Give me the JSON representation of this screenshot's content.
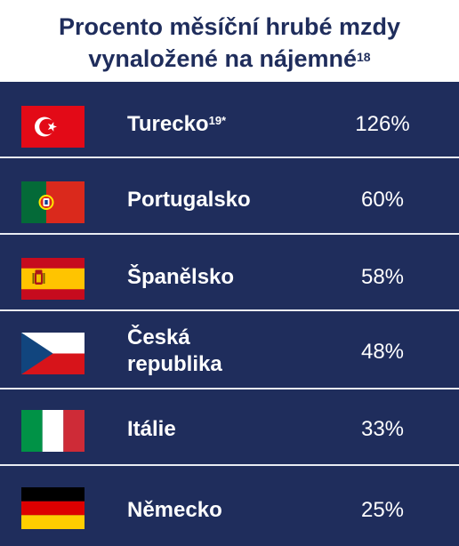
{
  "title": {
    "line1": "Procento měsíční hrubé mzdy",
    "line2": "vynaložené na nájemné",
    "footnote": "18"
  },
  "chart_data": {
    "type": "table",
    "title": "Procento měsíční hrubé mzdy vynaložené na nájemné",
    "unit": "%",
    "rows": [
      {
        "country": "Turecko",
        "footnote": "19*",
        "value": 126,
        "label": "126%",
        "flag": "turkey-flag-icon"
      },
      {
        "country": "Portugalsko",
        "footnote": "",
        "value": 60,
        "label": "60%",
        "flag": "portugal-flag-icon"
      },
      {
        "country": "Španělsko",
        "footnote": "",
        "value": 58,
        "label": "58%",
        "flag": "spain-flag-icon"
      },
      {
        "country": "Česká republika",
        "country_line1": "Česká",
        "country_line2": "republika",
        "footnote": "",
        "value": 48,
        "label": "48%",
        "flag": "czech-flag-icon"
      },
      {
        "country": "Itálie",
        "footnote": "",
        "value": 33,
        "label": "33%",
        "flag": "italy-flag-icon"
      },
      {
        "country": "Německo",
        "footnote": "",
        "value": 25,
        "label": "25%",
        "flag": "germany-flag-icon"
      }
    ]
  },
  "colors": {
    "table_background": "#1f2d5c",
    "title_text": "#1f2d5c",
    "row_divider": "#e9ecf3"
  }
}
